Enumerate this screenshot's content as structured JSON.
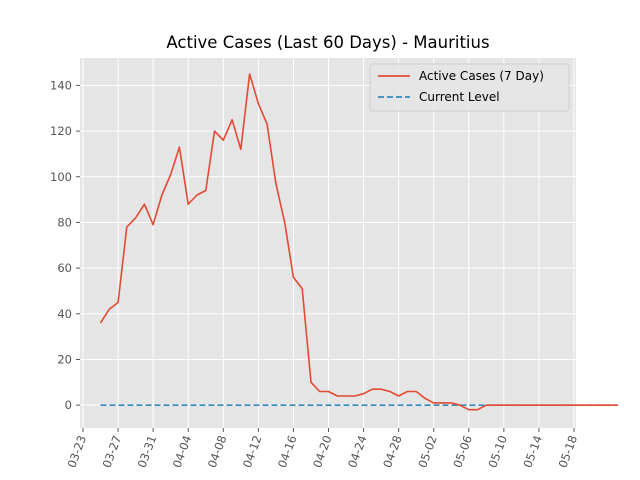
{
  "chart_data": {
    "type": "line",
    "title": "Active Cases (Last 60 Days) - Mauritius",
    "xlabel": "",
    "ylabel": "",
    "grid": true,
    "legend_position": "top-right",
    "x_start": "03-25",
    "x_tick_labels": [
      "03-23",
      "03-27",
      "03-31",
      "04-04",
      "04-08",
      "04-12",
      "04-16",
      "04-20",
      "04-24",
      "04-28",
      "05-02",
      "05-06",
      "05-10",
      "05-14",
      "05-18"
    ],
    "y_tick_labels": [
      "0",
      "20",
      "40",
      "60",
      "80",
      "100",
      "120",
      "140"
    ],
    "y_ticks": [
      0,
      20,
      40,
      60,
      80,
      100,
      120,
      140
    ],
    "xlim": [
      "03-23",
      "05-18"
    ],
    "ylim": [
      -10,
      152
    ],
    "series": [
      {
        "name": "Active Cases (7 Day)",
        "color": "#e24a33",
        "style": "solid",
        "values": [
          36,
          42,
          45,
          78,
          82,
          88,
          79,
          92,
          101,
          113,
          88,
          92,
          94,
          120,
          116,
          125,
          112,
          145,
          132,
          123,
          97,
          80,
          56,
          51,
          10,
          6,
          6,
          4,
          4,
          4,
          5,
          7,
          7,
          6,
          4,
          6,
          6,
          3,
          1,
          1,
          1,
          0,
          -2,
          -2,
          0,
          0,
          0,
          0,
          0,
          0,
          0,
          0,
          0,
          0,
          0,
          0,
          0,
          0,
          0,
          0
        ]
      },
      {
        "name": "Current Level",
        "color": "#348abd",
        "style": "dashed",
        "values": [
          0,
          0,
          0,
          0,
          0,
          0,
          0,
          0,
          0,
          0,
          0,
          0,
          0,
          0,
          0,
          0,
          0,
          0,
          0,
          0,
          0,
          0,
          0,
          0,
          0,
          0,
          0,
          0,
          0,
          0,
          0,
          0,
          0,
          0,
          0,
          0,
          0,
          0,
          0,
          0,
          0,
          0,
          0,
          0,
          0,
          0,
          0,
          0,
          0,
          0,
          0,
          0,
          0,
          0,
          0,
          0,
          0,
          0,
          0,
          0
        ]
      }
    ]
  }
}
